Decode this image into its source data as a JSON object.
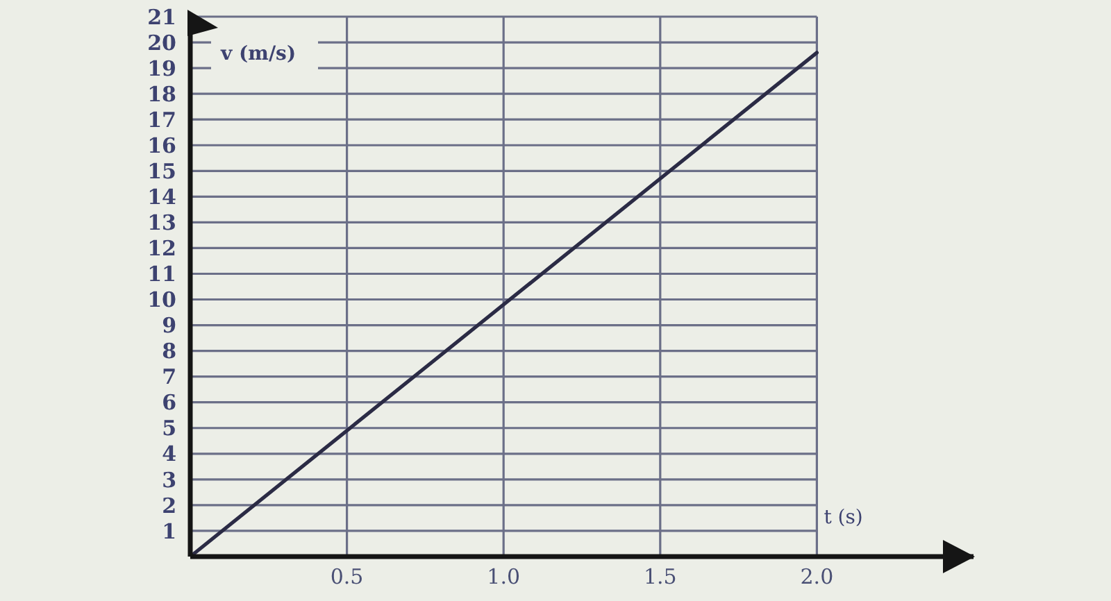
{
  "chart_data": {
    "type": "line",
    "xlabel": "t (s)",
    "ylabel": "v (m/s)",
    "x": [
      0,
      2
    ],
    "values": [
      0,
      19.6
    ],
    "color": "#2b2b45",
    "xlim": [
      0,
      2.5
    ],
    "ylim": [
      0,
      21
    ],
    "xticks": [
      0.5,
      {
        "value": 1,
        "label": "1.0"
      },
      1.5,
      {
        "value": 2,
        "label": "2.0"
      }
    ],
    "yticks": [
      1,
      2,
      3,
      4,
      5,
      6,
      7,
      8,
      9,
      10,
      11,
      12,
      13,
      14,
      15,
      16,
      17,
      18,
      19,
      20,
      21
    ],
    "grid": true
  }
}
